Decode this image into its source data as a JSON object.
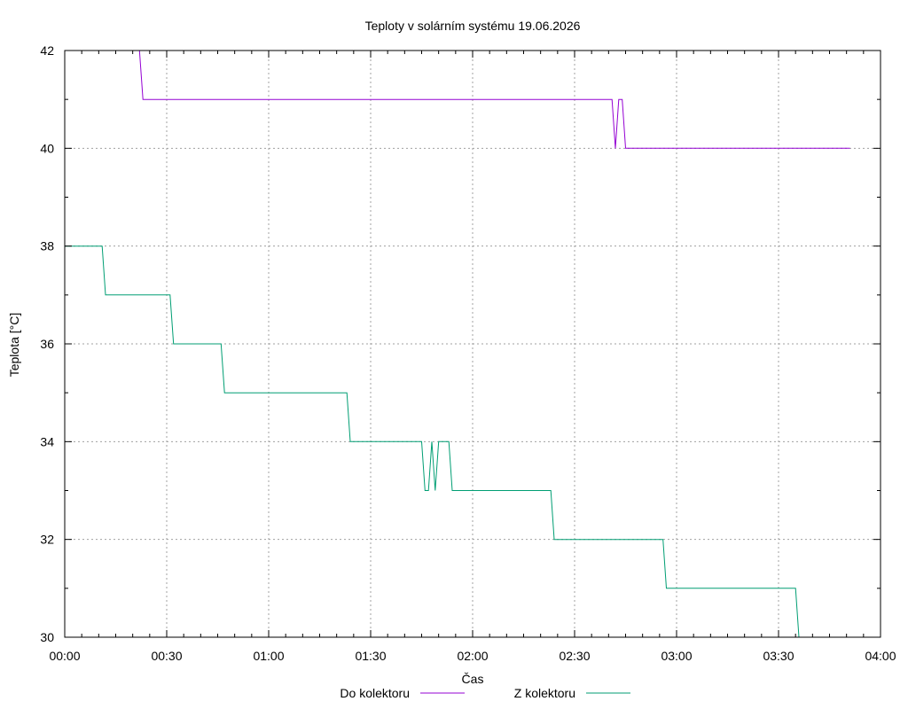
{
  "chart_data": {
    "type": "line",
    "title": "Teploty v solárním systému 19.06.2026",
    "xlabel": "Čas",
    "ylabel": "Teplota [°C]",
    "x_unit": "time HH:MM",
    "xlim": [
      "00:00",
      "04:00"
    ],
    "ylim": [
      30,
      42
    ],
    "x_ticks": [
      "00:00",
      "00:30",
      "01:00",
      "01:30",
      "02:00",
      "02:30",
      "03:00",
      "03:30",
      "04:00"
    ],
    "y_ticks": [
      "30",
      "32",
      "34",
      "36",
      "38",
      "40",
      "42"
    ],
    "grid": true,
    "legend_position": "bottom-center",
    "series": [
      {
        "name": "Do kolektoru",
        "color": "#9400d3",
        "x": [
          "00:22",
          "00:23",
          "02:41",
          "02:42",
          "02:43",
          "02:44",
          "02:45",
          "02:46",
          "03:51"
        ],
        "y": [
          42,
          41,
          41,
          40,
          41,
          41,
          40,
          40,
          40
        ]
      },
      {
        "name": "Z kolektoru",
        "color": "#009e73",
        "x": [
          "00:00",
          "00:11",
          "00:12",
          "00:31",
          "00:32",
          "00:46",
          "00:47",
          "01:23",
          "01:24",
          "01:45",
          "01:46",
          "01:47",
          "01:48",
          "01:49",
          "01:50",
          "01:51",
          "01:53",
          "01:54",
          "01:55",
          "02:23",
          "02:24",
          "02:56",
          "02:57",
          "03:35",
          "03:36"
        ],
        "y": [
          38,
          38,
          37,
          37,
          36,
          36,
          35,
          35,
          34,
          34,
          33,
          33,
          34,
          33,
          34,
          34,
          34,
          33,
          33,
          33,
          32,
          32,
          31,
          31,
          30
        ]
      }
    ]
  }
}
